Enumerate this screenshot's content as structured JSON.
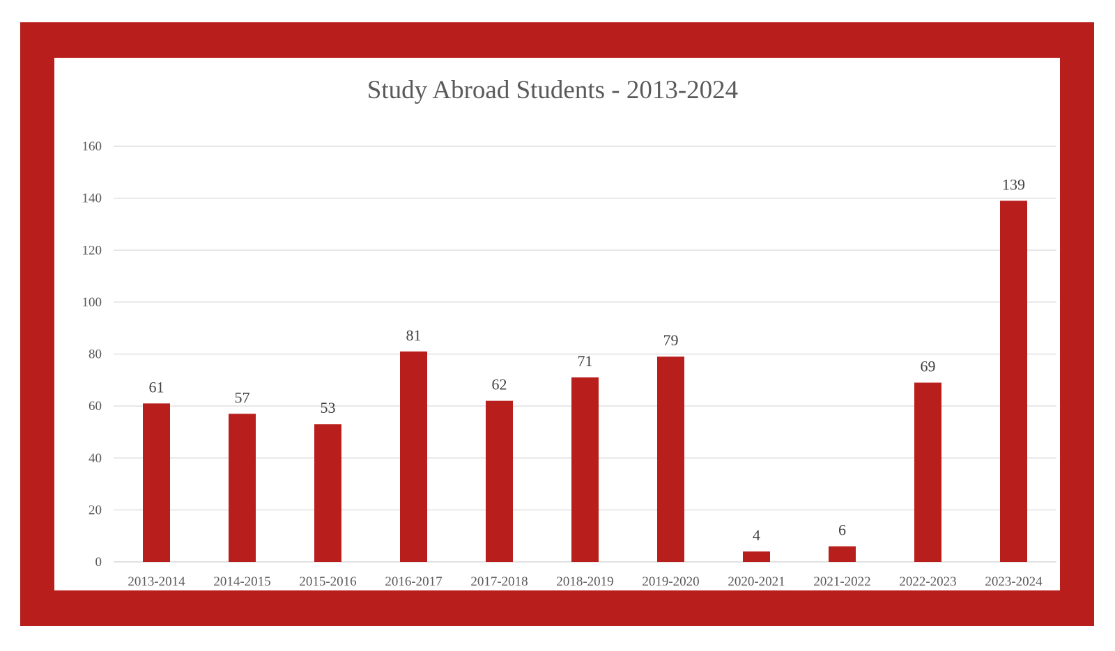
{
  "chart_data": {
    "type": "bar",
    "title": "Study Abroad Students - 2013-2024",
    "xlabel": "",
    "ylabel": "",
    "ylim": [
      0,
      160
    ],
    "yticks": [
      0,
      20,
      40,
      60,
      80,
      100,
      120,
      140,
      160
    ],
    "grid": true,
    "legend": "none",
    "categories": [
      "2013-2014",
      "2014-2015",
      "2015-2016",
      "2016-2017",
      "2017-2018",
      "2018-2019",
      "2019-2020",
      "2020-2021",
      "2021-2022",
      "2022-2023",
      "2023-2024"
    ],
    "values": [
      61,
      57,
      53,
      81,
      62,
      71,
      79,
      4,
      6,
      69,
      139
    ],
    "data_labels": [
      "61",
      "57",
      "53",
      "81",
      "62",
      "71",
      "79",
      "4",
      "6",
      "69",
      "139"
    ]
  },
  "colors": {
    "frame": "#b81f1c",
    "bar": "#b81f1c",
    "grid": "#d9d9d9",
    "panel": "#ffffff"
  }
}
